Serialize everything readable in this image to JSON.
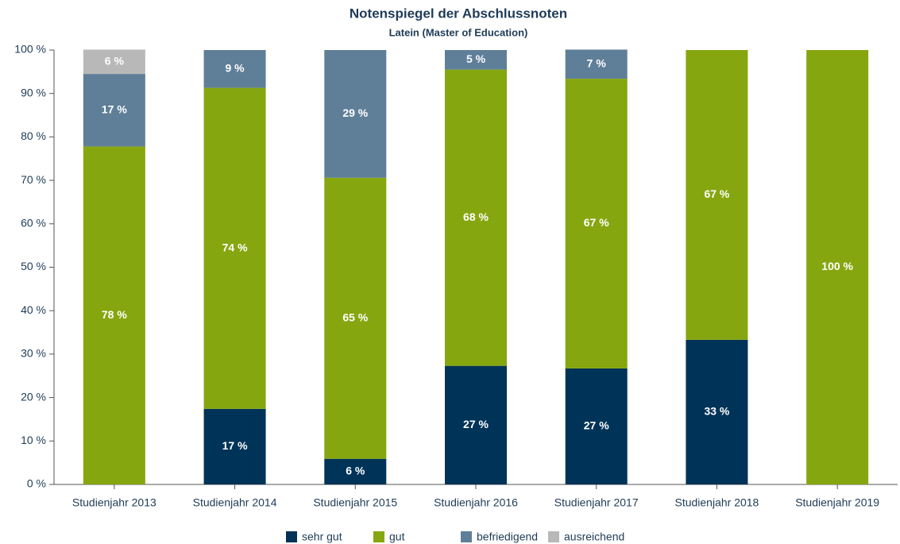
{
  "chart_data": {
    "type": "stacked_bar",
    "title": "Notenspiegel der Abschlussnoten",
    "subtitle": "Latein (Master of Education)",
    "categories": [
      "Studienjahr 2013",
      "Studienjahr 2014",
      "Studienjahr 2015",
      "Studienjahr 2016",
      "Studienjahr 2017",
      "Studienjahr 2018",
      "Studienjahr 2019"
    ],
    "series": [
      {
        "name": "sehr gut",
        "color": "#003358",
        "values": [
          null,
          17.4,
          5.9,
          27.3,
          26.7,
          33.3,
          null
        ],
        "value_labels": [
          null,
          "17 %",
          "6 %",
          "27 %",
          "27 %",
          "33 %",
          null
        ]
      },
      {
        "name": "gut",
        "color": "#86a60f",
        "values": [
          77.8,
          73.9,
          64.7,
          68.2,
          66.7,
          66.7,
          100
        ],
        "value_labels": [
          "78 %",
          "74 %",
          "65 %",
          "68 %",
          "67 %",
          "67 %",
          "100 %"
        ]
      },
      {
        "name": "befriedigend",
        "color": "#5f7f99",
        "values": [
          16.7,
          8.7,
          29.4,
          4.5,
          6.7,
          null,
          null
        ],
        "value_labels": [
          "17 %",
          "9 %",
          "29 %",
          "5 %",
          "7 %",
          null,
          null
        ]
      },
      {
        "name": "ausreichend",
        "color": "#b8b8b8",
        "values": [
          5.6,
          null,
          null,
          null,
          null,
          null,
          null
        ],
        "value_labels": [
          "6 %",
          null,
          null,
          null,
          null,
          null,
          null
        ]
      }
    ],
    "ylim": [
      0,
      100
    ],
    "yticks": [
      {
        "value": 0,
        "label": "0 %"
      },
      {
        "value": 10,
        "label": "10 %"
      },
      {
        "value": 20,
        "label": "20 %"
      },
      {
        "value": 30,
        "label": "30 %"
      },
      {
        "value": 40,
        "label": "40 %"
      },
      {
        "value": 50,
        "label": "50 %"
      },
      {
        "value": 60,
        "label": "60 %"
      },
      {
        "value": 70,
        "label": "70 %"
      },
      {
        "value": 80,
        "label": "80 %"
      },
      {
        "value": 90,
        "label": "90 %"
      },
      {
        "value": 100,
        "label": "100 %"
      }
    ],
    "legend": "bottom"
  }
}
